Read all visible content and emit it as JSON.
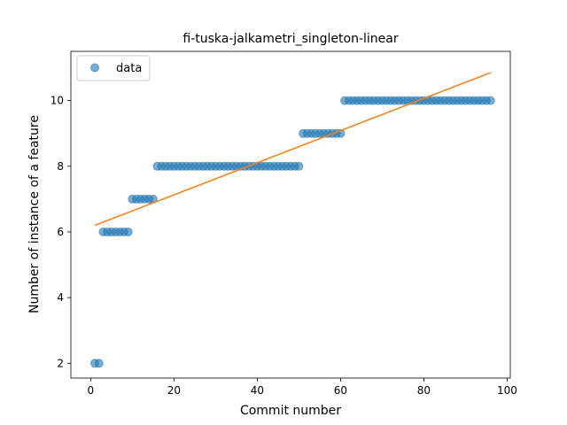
{
  "chart_data": {
    "type": "scatter",
    "title": "fi-tuska-jalkametri_singleton-linear",
    "xlabel": "Commit number",
    "ylabel": "Number of instance of a feature",
    "xlim": [
      -4.75,
      100.75
    ],
    "ylim": [
      1.55,
      11.5
    ],
    "xticks": [
      0,
      20,
      40,
      60,
      80,
      100
    ],
    "yticks": [
      2,
      4,
      6,
      8,
      10
    ],
    "legend": {
      "position": "top-left",
      "entries": [
        "data"
      ]
    },
    "grid": false,
    "series": [
      {
        "name": "data",
        "kind": "points",
        "color": "#1f77b4",
        "alpha": 0.6,
        "x": [
          1,
          2,
          3,
          4,
          5,
          6,
          7,
          8,
          9,
          10,
          11,
          12,
          13,
          14,
          15,
          16,
          17,
          18,
          19,
          20,
          21,
          22,
          23,
          24,
          25,
          26,
          27,
          28,
          29,
          30,
          31,
          32,
          33,
          34,
          35,
          36,
          37,
          38,
          39,
          40,
          41,
          42,
          43,
          44,
          45,
          46,
          47,
          48,
          49,
          50,
          51,
          52,
          53,
          54,
          55,
          56,
          57,
          58,
          59,
          60,
          61,
          62,
          63,
          64,
          65,
          66,
          67,
          68,
          69,
          70,
          71,
          72,
          73,
          74,
          75,
          76,
          77,
          78,
          79,
          80,
          81,
          82,
          83,
          84,
          85,
          86,
          87,
          88,
          89,
          90,
          91,
          92,
          93,
          94,
          95,
          96
        ],
        "y": [
          2,
          2,
          6,
          6,
          6,
          6,
          6,
          6,
          6,
          7,
          7,
          7,
          7,
          7,
          7,
          8,
          8,
          8,
          8,
          8,
          8,
          8,
          8,
          8,
          8,
          8,
          8,
          8,
          8,
          8,
          8,
          8,
          8,
          8,
          8,
          8,
          8,
          8,
          8,
          8,
          8,
          8,
          8,
          8,
          8,
          8,
          8,
          8,
          8,
          8,
          9,
          9,
          9,
          9,
          9,
          9,
          9,
          9,
          9,
          9,
          10,
          10,
          10,
          10,
          10,
          10,
          10,
          10,
          10,
          10,
          10,
          10,
          10,
          10,
          10,
          10,
          10,
          10,
          10,
          10,
          10,
          10,
          10,
          10,
          10,
          10,
          10,
          10,
          10,
          10,
          10,
          10,
          10,
          10,
          10,
          10
        ]
      },
      {
        "kind": "line",
        "color": "#ff7f0e",
        "x": [
          1,
          96
        ],
        "y": [
          6.2,
          10.85
        ]
      }
    ]
  }
}
